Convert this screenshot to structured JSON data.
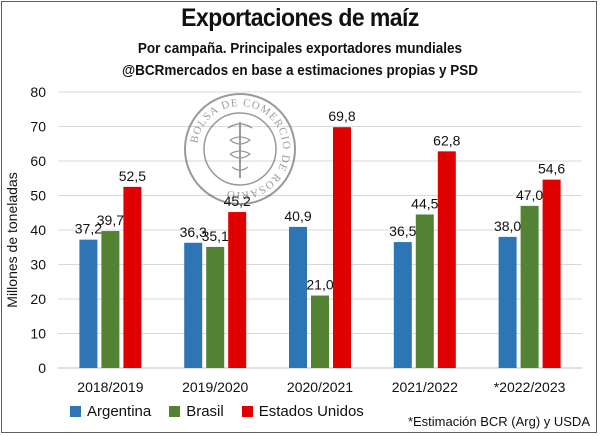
{
  "header": {
    "title": "Exportaciones de maíz",
    "subtitle_line1": "Por campaña. Principales exportadores mundiales",
    "subtitle_line2": "@BCRmercados en base a estimaciones propias y PSD"
  },
  "watermark": {
    "text": "BOLSA DE COMERCIO DE ROSARIO"
  },
  "footnote": "*Estimación BCR (Arg) y USDA",
  "chart_data": {
    "type": "bar",
    "title": "Exportaciones de maíz",
    "ylabel": "Millones de toneladas",
    "xlabel": "",
    "ylim": [
      0,
      80
    ],
    "yticks": [
      0,
      10,
      20,
      30,
      40,
      50,
      60,
      70,
      80
    ],
    "grid": true,
    "legend_position": "bottom",
    "categories": [
      "2018/2019",
      "2019/2020",
      "2020/2021",
      "2021/2022",
      "*2022/2023"
    ],
    "series": [
      {
        "name": "Argentina",
        "color": "#2e75b6",
        "values": [
          37.2,
          36.3,
          40.9,
          36.5,
          38.0
        ],
        "labels": [
          "37,2",
          "36,3",
          "40,9",
          "36,5",
          "38,0"
        ]
      },
      {
        "name": "Brasil",
        "color": "#548235",
        "values": [
          39.7,
          35.1,
          21.0,
          44.5,
          47.0
        ],
        "labels": [
          "39,7",
          "35,1",
          "21,0",
          "44,5",
          "47,0"
        ]
      },
      {
        "name": "Estados Unidos",
        "color": "#e00000",
        "values": [
          52.5,
          45.2,
          69.8,
          62.8,
          54.6
        ],
        "labels": [
          "52,5",
          "45,2",
          "69,8",
          "62,8",
          "54,6"
        ]
      }
    ]
  }
}
